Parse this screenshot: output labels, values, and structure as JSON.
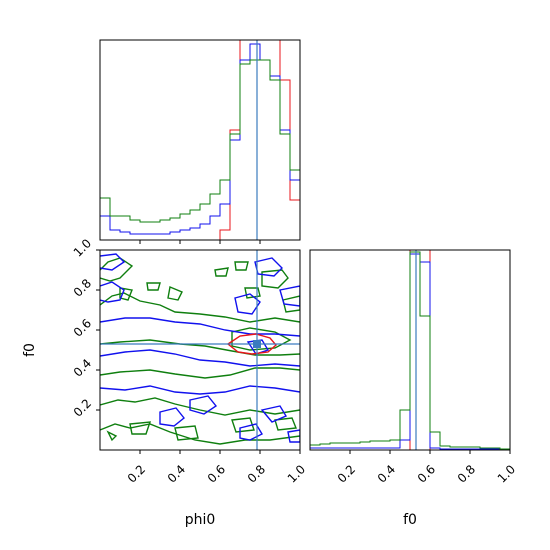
{
  "chart_data": {
    "type": "corner",
    "parameters": [
      "phi0",
      "f0"
    ],
    "truth": {
      "phi0": 0.785,
      "f0": 0.53
    },
    "colors": {
      "red": "#e8141b",
      "blue": "#1111ee",
      "green": "#0f7f0f",
      "truth": "#3b7bbf"
    },
    "panels": [
      {
        "id": "hist-phi0",
        "type": "histogram",
        "xlim": [
          0,
          1
        ],
        "x_ticks": [
          0.2,
          0.4,
          0.6,
          0.8
        ],
        "bins": [
          0,
          0.05,
          0.1,
          0.15,
          0.2,
          0.25,
          0.3,
          0.35,
          0.4,
          0.45,
          0.5,
          0.55,
          0.6,
          0.65,
          0.7,
          0.75,
          0.8,
          0.85,
          0.9,
          0.95,
          1.0
        ],
        "series": [
          {
            "color": "red",
            "values": [
              0,
              0,
              0,
              0,
              0,
              0,
              0,
              0,
              0,
              0,
              0,
              0,
              0.05,
              0.55,
              1.15,
              1.2,
              1.2,
              1.2,
              0.8,
              0.2
            ]
          },
          {
            "color": "blue",
            "values": [
              0.12,
              0.05,
              0.04,
              0.03,
              0.03,
              0.03,
              0.03,
              0.04,
              0.05,
              0.06,
              0.08,
              0.12,
              0.18,
              0.5,
              0.9,
              0.98,
              0.9,
              0.82,
              0.55,
              0.3
            ]
          },
          {
            "color": "green",
            "values": [
              0.21,
              0.12,
              0.12,
              0.1,
              0.09,
              0.09,
              0.1,
              0.11,
              0.13,
              0.15,
              0.18,
              0.23,
              0.3,
              0.53,
              0.88,
              0.9,
              0.9,
              0.8,
              0.53,
              0.35
            ]
          }
        ]
      },
      {
        "id": "contour-f0-vs-phi0",
        "type": "contour",
        "xlabel": "phi0",
        "ylabel": "f0",
        "xlim": [
          0,
          1
        ],
        "ylim": [
          0,
          1
        ],
        "x_ticks": [
          0.2,
          0.4,
          0.6,
          0.8,
          1.0
        ],
        "y_ticks": [
          0.2,
          0.4,
          0.6,
          0.8,
          1.0
        ]
      },
      {
        "id": "hist-f0",
        "type": "histogram",
        "xlabel": "f0",
        "xlim": [
          0,
          1
        ],
        "x_ticks": [
          0.2,
          0.4,
          0.6,
          0.8,
          1.0
        ],
        "bins": [
          0,
          0.05,
          0.1,
          0.15,
          0.2,
          0.25,
          0.3,
          0.35,
          0.4,
          0.45,
          0.5,
          0.55,
          0.6,
          0.65,
          0.7,
          0.75,
          0.8,
          0.85,
          0.9,
          0.95,
          1.0
        ],
        "series": [
          {
            "color": "red",
            "values": [
              0,
              0,
              0,
              0,
              0,
              0,
              0,
              0,
              0,
              0,
              1.05,
              1.05,
              0,
              0,
              0,
              0,
              0,
              0,
              0,
              0
            ]
          },
          {
            "color": "blue",
            "values": [
              0.01,
              0.01,
              0.01,
              0.01,
              0.01,
              0.01,
              0.01,
              0.01,
              0.01,
              0.05,
              0.98,
              0.94,
              0.01,
              0.005,
              0.005,
              0.005,
              0.005,
              0.005,
              0.005,
              0.005
            ]
          },
          {
            "color": "green",
            "values": [
              0.025,
              0.03,
              0.035,
              0.035,
              0.035,
              0.04,
              0.045,
              0.045,
              0.05,
              0.2,
              0.99,
              0.67,
              0.09,
              0.02,
              0.015,
              0.015,
              0.015,
              0.01,
              0.01,
              0.005
            ]
          }
        ]
      }
    ]
  }
}
